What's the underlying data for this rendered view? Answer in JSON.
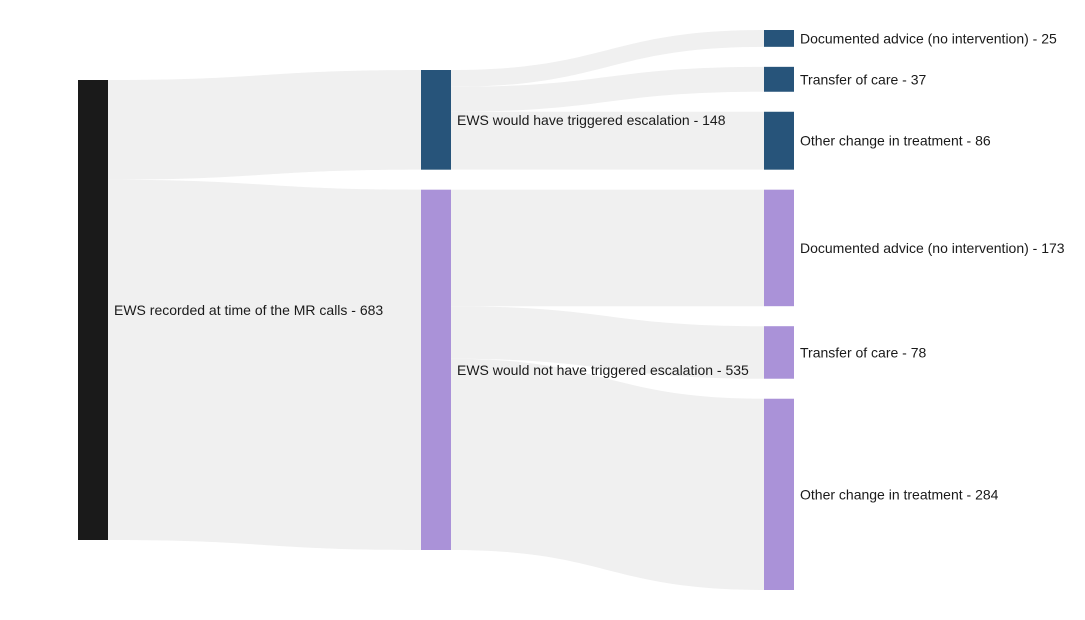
{
  "chart_data": {
    "type": "sankey",
    "nodes": [
      {
        "id": "root",
        "label": "EWS recorded at time of the MR calls - 683",
        "value": 683,
        "color": "#1a1a1a"
      },
      {
        "id": "esc",
        "label": "EWS would have triggered escalation - 148",
        "value": 148,
        "color": "#27547a"
      },
      {
        "id": "noesc",
        "label": "EWS would not have triggered escalation - 535",
        "value": 535,
        "color": "#aa92d8"
      },
      {
        "id": "esc_doc",
        "label": "Documented advice (no intervention) - 25",
        "value": 25,
        "color": "#27547a"
      },
      {
        "id": "esc_tr",
        "label": "Transfer of care - 37",
        "value": 37,
        "color": "#27547a"
      },
      {
        "id": "esc_oth",
        "label": "Other change in treatment - 86",
        "value": 86,
        "color": "#27547a"
      },
      {
        "id": "no_doc",
        "label": "Documented advice (no intervention) - 173",
        "value": 173,
        "color": "#aa92d8"
      },
      {
        "id": "no_tr",
        "label": "Transfer of care - 78",
        "value": 78,
        "color": "#aa92d8"
      },
      {
        "id": "no_oth",
        "label": "Other change in treatment - 284",
        "value": 284,
        "color": "#aa92d8"
      }
    ],
    "links": [
      {
        "source": "root",
        "target": "esc",
        "value": 148
      },
      {
        "source": "root",
        "target": "noesc",
        "value": 535
      },
      {
        "source": "esc",
        "target": "esc_doc",
        "value": 25
      },
      {
        "source": "esc",
        "target": "esc_tr",
        "value": 37
      },
      {
        "source": "esc",
        "target": "esc_oth",
        "value": 86
      },
      {
        "source": "noesc",
        "target": "no_doc",
        "value": 173
      },
      {
        "source": "noesc",
        "target": "no_tr",
        "value": 78
      },
      {
        "source": "noesc",
        "target": "no_oth",
        "value": 284
      }
    ],
    "link_color": "#f0f0f0"
  }
}
